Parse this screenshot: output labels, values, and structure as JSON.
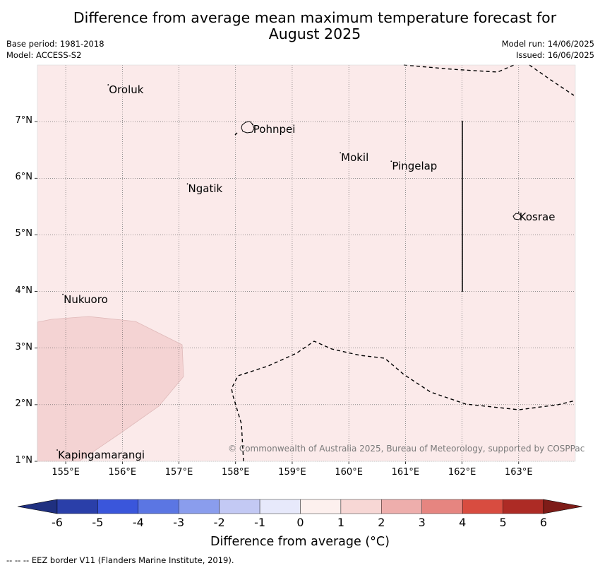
{
  "title_line1": "Difference from average mean maximum temperature forecast for",
  "title_line2": "August 2025",
  "meta_left": [
    "Base period: 1981-2018",
    "Model: ACCESS-S2"
  ],
  "meta_right": [
    "Model run: 14/06/2025",
    "Issued: 16/06/2025"
  ],
  "map": {
    "lon_range": [
      154.5,
      164.0
    ],
    "lat_range": [
      1.0,
      8.0
    ],
    "lon_ticks": [
      {
        "value": 155,
        "label": "155°E"
      },
      {
        "value": 156,
        "label": "156°E"
      },
      {
        "value": 157,
        "label": "157°E"
      },
      {
        "value": 158,
        "label": "158°E"
      },
      {
        "value": 159,
        "label": "159°E"
      },
      {
        "value": 160,
        "label": "160°E"
      },
      {
        "value": 161,
        "label": "161°E"
      },
      {
        "value": 162,
        "label": "162°E"
      },
      {
        "value": 163,
        "label": "163°E"
      }
    ],
    "lat_ticks": [
      {
        "value": 1,
        "label": "1°N"
      },
      {
        "value": 2,
        "label": "2°N"
      },
      {
        "value": 3,
        "label": "3°N"
      },
      {
        "value": 4,
        "label": "4°N"
      },
      {
        "value": 5,
        "label": "5°N"
      },
      {
        "value": 6,
        "label": "6°N"
      },
      {
        "value": 7,
        "label": "7°N"
      }
    ],
    "background_fill": "#fbeaea",
    "anomaly_fill": "#f4d3d3",
    "places": [
      {
        "name": "Oroluk",
        "lon": 155.75,
        "lat": 7.55
      },
      {
        "name": "Pohnpei",
        "lon": 158.3,
        "lat": 6.85
      },
      {
        "name": "Mokil",
        "lon": 159.85,
        "lat": 6.35
      },
      {
        "name": "Pingelap",
        "lon": 160.75,
        "lat": 6.2
      },
      {
        "name": "Ngatik",
        "lon": 157.15,
        "lat": 5.8
      },
      {
        "name": "Kosrae",
        "lon": 163.0,
        "lat": 5.3
      },
      {
        "name": "Nukuoro",
        "lon": 154.95,
        "lat": 3.85
      },
      {
        "name": "Kapingamarangi",
        "lon": 154.85,
        "lat": 1.1
      }
    ],
    "copyright": "© Commonwealth of Australia 2025, Bureau of Meteorology, supported by COSPPac"
  },
  "colorbar": {
    "labels": [
      "-6",
      "-5",
      "-4",
      "-3",
      "-2",
      "-1",
      "0",
      "1",
      "2",
      "3",
      "4",
      "5",
      "6"
    ],
    "colors": [
      "#2a3fa9",
      "#3a56db",
      "#5b76e3",
      "#8a9ded",
      "#c3c9f4",
      "#e7e9fb",
      "#fdf0ee",
      "#f7d7d5",
      "#eeaeac",
      "#e68580",
      "#d84c40",
      "#ad2b25"
    ],
    "under_color": "#1f3080",
    "over_color": "#7e1c18",
    "title": "Difference from average (°C)"
  },
  "footnote": "-- -- -- EEZ border V11 (Flanders Marine Institute, 2019)."
}
